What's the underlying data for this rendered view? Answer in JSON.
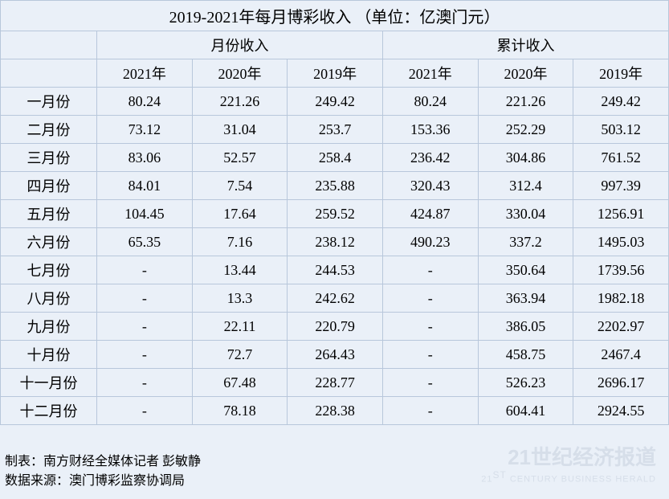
{
  "table": {
    "title": "2019-2021年每月博彩收入 （单位：亿澳门元）",
    "group_headers": [
      "月份收入",
      "累计收入"
    ],
    "year_headers": [
      "2021年",
      "2020年",
      "2019年",
      "2021年",
      "2020年",
      "2019年"
    ],
    "months": [
      "一月份",
      "二月份",
      "三月份",
      "四月份",
      "五月份",
      "六月份",
      "七月份",
      "八月份",
      "九月份",
      "十月份",
      "十一月份",
      "十二月份"
    ],
    "monthly": {
      "y2021": [
        "80.24",
        "73.12",
        "83.06",
        "84.01",
        "104.45",
        "65.35",
        "-",
        "-",
        "-",
        "-",
        "-",
        "-"
      ],
      "y2020": [
        "221.26",
        "31.04",
        "52.57",
        "7.54",
        "17.64",
        "7.16",
        "13.44",
        "13.3",
        "22.11",
        "72.7",
        "67.48",
        "78.18"
      ],
      "y2019": [
        "249.42",
        "253.7",
        "258.4",
        "235.88",
        "259.52",
        "238.12",
        "244.53",
        "242.62",
        "220.79",
        "264.43",
        "228.77",
        "228.38"
      ]
    },
    "cumulative": {
      "y2021": [
        "80.24",
        "153.36",
        "236.42",
        "320.43",
        "424.87",
        "490.23",
        "-",
        "-",
        "-",
        "-",
        "-",
        "-"
      ],
      "y2020": [
        "221.26",
        "252.29",
        "304.86",
        "312.4",
        "330.04",
        "337.2",
        "350.64",
        "363.94",
        "386.05",
        "458.75",
        "526.23",
        "604.41"
      ],
      "y2019": [
        "249.42",
        "503.12",
        "761.52",
        "997.39",
        "1256.91",
        "1495.03",
        "1739.56",
        "1982.18",
        "2202.97",
        "2467.4",
        "2696.17",
        "2924.55"
      ]
    },
    "styling": {
      "background_color": "#eaf0f8",
      "border_color": "#b8c7db",
      "text_color": "#000000",
      "title_fontsize": 20,
      "cell_fontsize": 18
    }
  },
  "footer": {
    "credit": "制表：南方财经全媒体记者 彭敏静",
    "source": "数据来源：澳门博彩监察协调局"
  },
  "watermark": {
    "main_prefix": "21",
    "main_text": "世纪经济报道",
    "sub_prefix": "21",
    "sub_suffix": "ST",
    "sub_text": " CENTURY BUSINESS HERALD",
    "color": "#d6dee9"
  }
}
